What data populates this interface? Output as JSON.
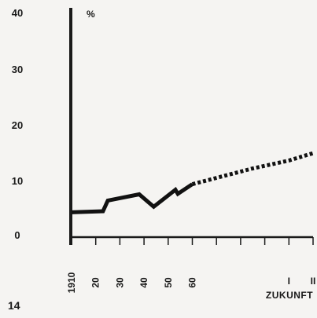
{
  "page_number": "14",
  "chart_data": {
    "type": "line",
    "title": "",
    "xlabel": "",
    "ylabel": "",
    "y_unit_label": "%",
    "ylim": [
      0,
      40
    ],
    "y_ticks": [
      "0",
      "10",
      "20",
      "30",
      "40"
    ],
    "xlim": [
      1910,
      2010
    ],
    "x_tick_labels": [
      {
        "x": 1910,
        "label": "1910"
      },
      {
        "x": 1920,
        "label": "20"
      },
      {
        "x": 1930,
        "label": "30"
      },
      {
        "x": 1940,
        "label": "40"
      },
      {
        "x": 1950,
        "label": "50"
      },
      {
        "x": 1960,
        "label": "60"
      },
      {
        "x": 2000,
        "label": "I"
      },
      {
        "x": 2010,
        "label": "II"
      }
    ],
    "future_label": "ZUKUNFT",
    "grid": false,
    "legend": "none",
    "series": [
      {
        "style": "solid",
        "x": [
          1910,
          1923,
          1925,
          1938,
          1944,
          1953,
          1954,
          1960
        ],
        "y": [
          4.4,
          4.6,
          6.5,
          7.6,
          5.4,
          8.4,
          7.7,
          9.4
        ]
      },
      {
        "style": "dashed",
        "x": [
          1960,
          1985,
          2000,
          2010
        ],
        "y": [
          9.4,
          12.2,
          13.6,
          14.9
        ]
      }
    ]
  }
}
